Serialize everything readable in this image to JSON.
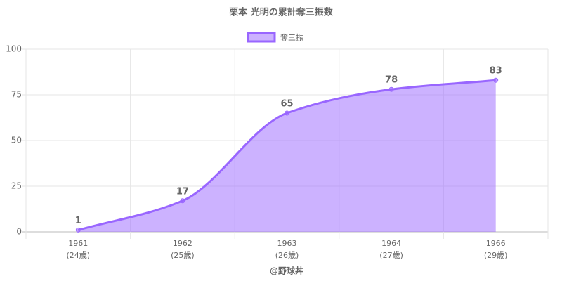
{
  "chart_data": {
    "type": "area",
    "title": "栗本 光明の累計奪三振数",
    "x_label": "@野球丼",
    "categories": [
      [
        "1961",
        "(24歳)"
      ],
      [
        "1962",
        "(25歳)"
      ],
      [
        "1963",
        "(26歳)"
      ],
      [
        "1964",
        "(27歳)"
      ],
      [
        "1966",
        "(29歳)"
      ]
    ],
    "series": [
      {
        "name": "奪三振",
        "color": "#9966ff",
        "values": [
          1,
          17,
          65,
          78,
          83
        ]
      }
    ],
    "ylim": [
      0,
      100
    ],
    "yticks": [
      0,
      25,
      50,
      75,
      100
    ],
    "grid": true,
    "legend": "top"
  }
}
